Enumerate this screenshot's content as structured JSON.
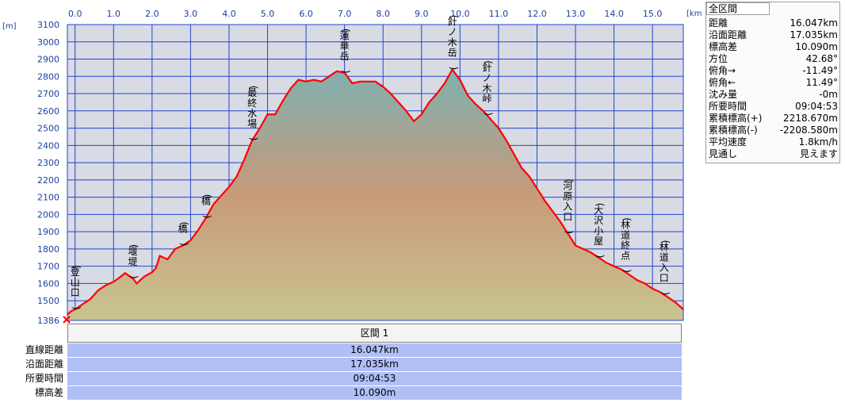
{
  "summary": {
    "title": "全区間",
    "rows": [
      {
        "label": "距離",
        "value": "16.047km"
      },
      {
        "label": "沿面距離",
        "value": "17.035km"
      },
      {
        "label": "標高差",
        "value": "10.090m"
      },
      {
        "label": "方位",
        "value": "42.68°"
      },
      {
        "label": "俯角→",
        "value": "-11.49°"
      },
      {
        "label": "俯角←",
        "value": "11.49°"
      },
      {
        "label": "沈み量",
        "value": "-0m"
      },
      {
        "label": "所要時間",
        "value": "09:04:53"
      },
      {
        "label": "累積標高(+)",
        "value": "2218.670m"
      },
      {
        "label": "累積標高(-)",
        "value": "-2208.580m"
      },
      {
        "label": "平均速度",
        "value": "1.8km/h"
      },
      {
        "label": "見通し",
        "value": "見えます"
      }
    ]
  },
  "section": {
    "header": "区間 1",
    "rows": [
      {
        "label": "直線距離",
        "value": "16.047km"
      },
      {
        "label": "沿面距離",
        "value": "17.035km"
      },
      {
        "label": "所要時間",
        "value": "09:04:53"
      },
      {
        "label": "標高差",
        "value": "10.090m"
      }
    ]
  },
  "colors": {
    "plot_bg": "#d8dbe4",
    "grid": "#2244cc",
    "axis_text": "#2040a0",
    "profile_line": "#ff0000",
    "fill_top": "#7fb0b0",
    "fill_mid": "#c89a7a",
    "fill_bottom": "#c8c490",
    "table_value_bg": "#b0bff6"
  },
  "chart_data": {
    "type": "area",
    "x_unit": "[km]",
    "y_unit": "[m]",
    "xlim": [
      -0.2,
      15.8
    ],
    "ylim": [
      1386,
      3100
    ],
    "xticks": [
      "0.0",
      "1.0",
      "2.0",
      "3.0",
      "4.0",
      "5.0",
      "6.0",
      "7.0",
      "8.0",
      "9.0",
      "10.0",
      "11.0",
      "12.0",
      "13.0",
      "14.0",
      "15.0"
    ],
    "xtick_values": [
      0,
      1,
      2,
      3,
      4,
      5,
      6,
      7,
      8,
      9,
      10,
      11,
      12,
      13,
      14,
      15
    ],
    "yticks": [
      "3100",
      "3000",
      "2900",
      "2800",
      "2700",
      "2600",
      "2500",
      "2400",
      "2300",
      "2200",
      "2100",
      "2000",
      "1900",
      "1800",
      "1700",
      "1600",
      "1500",
      "1386"
    ],
    "ytick_values": [
      3100,
      3000,
      2900,
      2800,
      2700,
      2600,
      2500,
      2400,
      2300,
      2200,
      2100,
      2000,
      1900,
      1800,
      1700,
      1600,
      1500,
      1386
    ],
    "profile": {
      "x": [
        -0.2,
        -0.1,
        0.0,
        0.2,
        0.4,
        0.6,
        0.8,
        1.0,
        1.1,
        1.3,
        1.5,
        1.6,
        1.8,
        2.0,
        2.1,
        2.2,
        2.4,
        2.6,
        2.7,
        2.8,
        3.0,
        3.2,
        3.4,
        3.6,
        3.8,
        4.0,
        4.2,
        4.4,
        4.6,
        4.8,
        5.0,
        5.2,
        5.4,
        5.6,
        5.8,
        6.0,
        6.2,
        6.4,
        6.6,
        6.8,
        7.0,
        7.2,
        7.4,
        7.6,
        7.8,
        8.0,
        8.2,
        8.4,
        8.6,
        8.8,
        9.0,
        9.2,
        9.4,
        9.6,
        9.8,
        10.0,
        10.2,
        10.4,
        10.6,
        10.8,
        11.0,
        11.2,
        11.4,
        11.6,
        11.8,
        12.0,
        12.2,
        12.4,
        12.6,
        12.8,
        13.0,
        13.2,
        13.4,
        13.6,
        13.8,
        14.0,
        14.2,
        14.4,
        14.6,
        14.8,
        15.0,
        15.2,
        15.4,
        15.6,
        15.8
      ],
      "elevation": [
        1420,
        1440,
        1450,
        1480,
        1510,
        1560,
        1590,
        1610,
        1625,
        1660,
        1630,
        1600,
        1640,
        1665,
        1690,
        1760,
        1740,
        1800,
        1810,
        1820,
        1850,
        1910,
        1980,
        2060,
        2110,
        2160,
        2220,
        2320,
        2430,
        2500,
        2580,
        2580,
        2660,
        2730,
        2780,
        2770,
        2780,
        2770,
        2800,
        2830,
        2820,
        2760,
        2770,
        2770,
        2770,
        2740,
        2700,
        2650,
        2600,
        2540,
        2580,
        2650,
        2700,
        2760,
        2840,
        2780,
        2690,
        2640,
        2600,
        2550,
        2500,
        2430,
        2350,
        2270,
        2220,
        2150,
        2080,
        2020,
        1960,
        1890,
        1820,
        1800,
        1780,
        1750,
        1720,
        1700,
        1680,
        1650,
        1620,
        1600,
        1570,
        1550,
        1520,
        1490,
        1450
      ]
    },
    "annotations": [
      {
        "text": "(登山口)",
        "x": 0.0
      },
      {
        "text": "(堰堤)",
        "x": 1.5
      },
      {
        "text": "(橋)",
        "x": 2.8
      },
      {
        "text": "(橋)",
        "x": 3.4
      },
      {
        "text": "(最終水場)",
        "x": 4.6
      },
      {
        "text": "(蓮華岳)",
        "x": 7.0
      },
      {
        "text": "(針ノ木岳)",
        "x": 9.8
      },
      {
        "text": "(針ノ木峠)",
        "x": 10.7
      },
      {
        "text": "(河原入口)",
        "x": 12.8
      },
      {
        "text": "(大沢小屋)",
        "x": 13.6
      },
      {
        "text": "(林道終点)",
        "x": 14.3
      },
      {
        "text": "(林道入口)",
        "x": 15.3
      }
    ]
  }
}
